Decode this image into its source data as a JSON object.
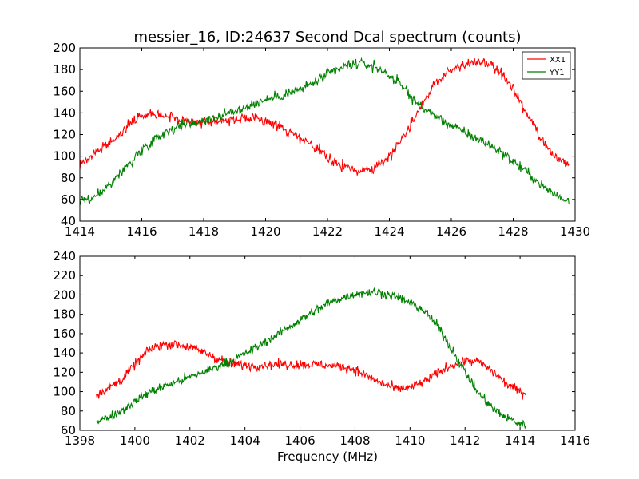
{
  "chart_data": [
    {
      "type": "line",
      "title": "messier_16, ID:24637 Second Dcal spectrum (counts)",
      "xlabel": "",
      "ylabel": "",
      "xlim": [
        1414,
        1430
      ],
      "ylim": [
        40,
        200
      ],
      "xticks": [
        1414,
        1416,
        1418,
        1420,
        1422,
        1424,
        1426,
        1428,
        1430
      ],
      "yticks": [
        40,
        60,
        80,
        100,
        120,
        140,
        160,
        180,
        200
      ],
      "legend": {
        "placement": "top-right",
        "entries": [
          "XX1",
          "YY1"
        ]
      },
      "series": [
        {
          "name": "XX1",
          "color": "#ff0000",
          "x": [
            1414.0,
            1414.5,
            1415.0,
            1415.5,
            1416.0,
            1416.5,
            1417.0,
            1417.5,
            1418.0,
            1418.5,
            1419.0,
            1419.5,
            1420.0,
            1420.5,
            1421.0,
            1421.5,
            1422.0,
            1422.5,
            1423.0,
            1423.5,
            1424.0,
            1424.5,
            1425.0,
            1425.5,
            1426.0,
            1426.5,
            1427.0,
            1427.5,
            1428.0,
            1428.5,
            1429.0,
            1429.5,
            1429.8
          ],
          "y": [
            92,
            102,
            113,
            128,
            138,
            140,
            136,
            132,
            132,
            133,
            134,
            134,
            133,
            127,
            118,
            110,
            99,
            90,
            86,
            89,
            100,
            120,
            146,
            168,
            180,
            185,
            187,
            180,
            162,
            136,
            110,
            95,
            93
          ]
        },
        {
          "name": "YY1",
          "color": "#008000",
          "x": [
            1414.0,
            1414.5,
            1415.0,
            1415.5,
            1416.0,
            1416.5,
            1417.0,
            1417.5,
            1418.0,
            1418.5,
            1419.0,
            1419.5,
            1420.0,
            1420.5,
            1421.0,
            1421.5,
            1422.0,
            1422.5,
            1423.0,
            1423.5,
            1424.0,
            1424.5,
            1425.0,
            1425.5,
            1426.0,
            1426.5,
            1427.0,
            1427.5,
            1428.0,
            1428.5,
            1429.0,
            1429.5,
            1429.8
          ],
          "y": [
            58,
            62,
            75,
            90,
            106,
            118,
            126,
            130,
            133,
            137,
            141,
            147,
            152,
            156,
            160,
            167,
            175,
            182,
            186,
            183,
            175,
            162,
            146,
            137,
            128,
            121,
            114,
            106,
            95,
            84,
            71,
            62,
            59
          ]
        }
      ]
    },
    {
      "type": "line",
      "title": "",
      "xlabel": "Frequency (MHz)",
      "ylabel": "",
      "xlim": [
        1398,
        1416
      ],
      "ylim": [
        60,
        240
      ],
      "xticks": [
        1398,
        1400,
        1402,
        1404,
        1406,
        1408,
        1410,
        1412,
        1414,
        1416
      ],
      "yticks": [
        60,
        80,
        100,
        120,
        140,
        160,
        180,
        200,
        220,
        240
      ],
      "series": [
        {
          "name": "XX1",
          "color": "#ff0000",
          "x": [
            1398.6,
            1399.0,
            1399.5,
            1400.0,
            1400.5,
            1401.0,
            1401.5,
            1402.0,
            1402.5,
            1403.0,
            1403.5,
            1404.0,
            1404.5,
            1405.0,
            1405.5,
            1406.0,
            1406.5,
            1407.0,
            1407.5,
            1408.0,
            1408.5,
            1409.0,
            1409.5,
            1410.0,
            1410.5,
            1411.0,
            1411.5,
            1412.0,
            1412.5,
            1413.0,
            1413.5,
            1414.0,
            1414.2
          ],
          "y": [
            97,
            103,
            112,
            128,
            143,
            149,
            149,
            146,
            141,
            134,
            129,
            127,
            127,
            128,
            128,
            128,
            128,
            127,
            126,
            123,
            115,
            108,
            103,
            104,
            110,
            119,
            127,
            132,
            131,
            121,
            108,
            100,
            98
          ]
        },
        {
          "name": "YY1",
          "color": "#008000",
          "x": [
            1398.6,
            1399.0,
            1399.5,
            1400.0,
            1400.5,
            1401.0,
            1401.5,
            1402.0,
            1402.5,
            1403.0,
            1403.5,
            1404.0,
            1404.5,
            1405.0,
            1405.5,
            1406.0,
            1406.5,
            1407.0,
            1407.5,
            1408.0,
            1408.5,
            1409.0,
            1409.5,
            1410.0,
            1410.5,
            1411.0,
            1411.5,
            1412.0,
            1412.5,
            1413.0,
            1413.5,
            1414.0,
            1414.2
          ],
          "y": [
            70,
            73,
            80,
            90,
            99,
            105,
            110,
            115,
            120,
            126,
            131,
            139,
            147,
            156,
            165,
            174,
            183,
            191,
            197,
            201,
            203,
            202,
            198,
            192,
            184,
            168,
            145,
            120,
            98,
            83,
            73,
            67,
            65
          ]
        }
      ]
    }
  ]
}
